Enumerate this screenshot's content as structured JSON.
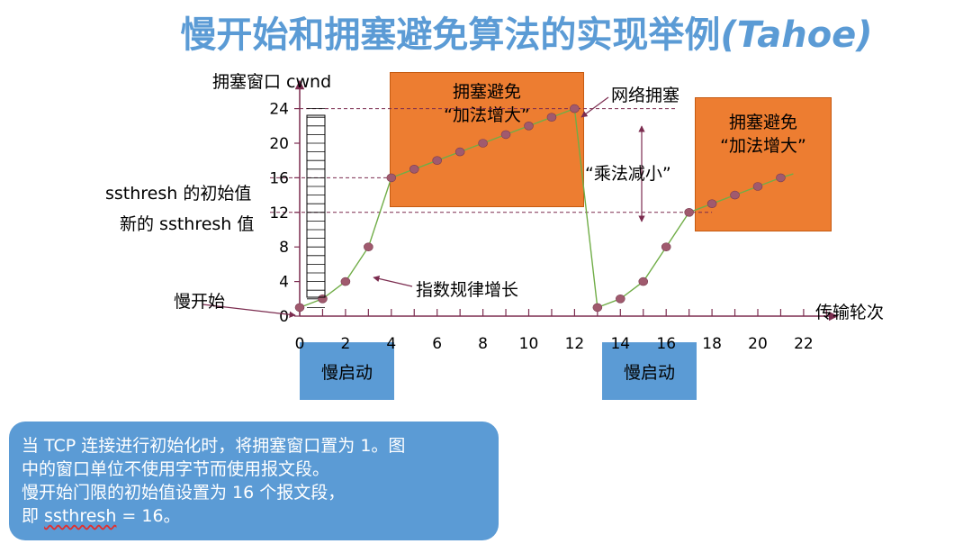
{
  "title": {
    "main": "慢开始和拥塞避免算法的实现举例",
    "latin": "(Tahoe)"
  },
  "y_axis_label": "拥塞窗口 cwnd",
  "x_axis_label": "传输轮次",
  "annotations": {
    "ssthresh_initial": "ssthresh 的初始值",
    "ssthresh_new": "新的 ssthresh 值",
    "slow_start": "慢开始",
    "exponential": "指数规律增长",
    "congestion": "网络拥塞",
    "multiplicative": "“乘法减小”"
  },
  "boxes": {
    "ca1_line1": "拥塞避免",
    "ca1_line2": "“加法增大”",
    "ca2_line1": "拥塞避免",
    "ca2_line2": "“加法增大”",
    "ss1": "慢启动",
    "ss2": "慢启动"
  },
  "note": {
    "line1": "当 TCP 连接进行初始化时，将拥塞窗口置为 1。图",
    "line2": "中的窗口单位不使用字节而使用报文段。",
    "line3": "慢开始门限的初始值设置为 16 个报文段，",
    "line4_prefix": "即 ",
    "line4_word": "ssthresh",
    "line4_suffix": " = 16。"
  },
  "colors": {
    "title": "#5b9bd5",
    "orange": "#ed7d31",
    "blue": "#5b9bd5",
    "line": "#70ad47",
    "dot": "#a05a6e",
    "axis": "#7b2c4f"
  },
  "chart_data": {
    "type": "line",
    "x": [
      0,
      1,
      2,
      3,
      4,
      5,
      6,
      7,
      8,
      9,
      10,
      11,
      12,
      13,
      14,
      15,
      16,
      17,
      18,
      19,
      20,
      21
    ],
    "series": [
      {
        "values": [
          1,
          2,
          4,
          8,
          16,
          17,
          18,
          19,
          20,
          21,
          22,
          23,
          24,
          1,
          2,
          4,
          8,
          12,
          13,
          14,
          15,
          16
        ]
      }
    ],
    "x_ticks": [
      0,
      2,
      4,
      6,
      8,
      10,
      12,
      14,
      16,
      18,
      20,
      22
    ],
    "y_ticks": [
      0,
      4,
      8,
      12,
      16,
      20,
      24
    ],
    "xlim": [
      0,
      23
    ],
    "ylim": [
      0,
      27
    ]
  }
}
